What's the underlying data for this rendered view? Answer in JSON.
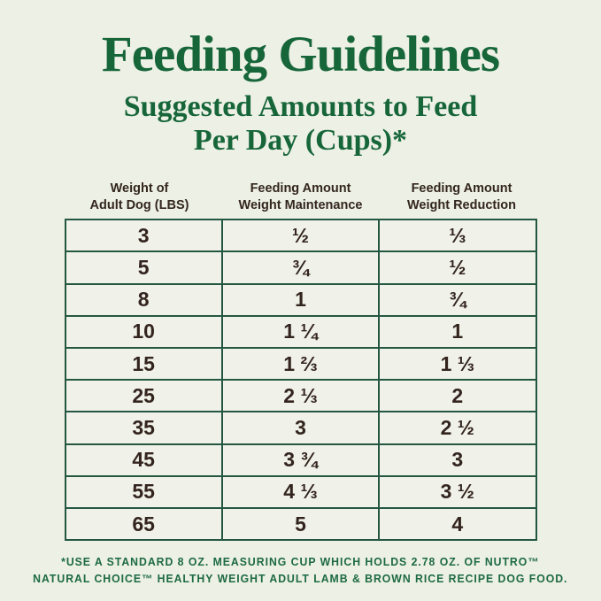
{
  "colors": {
    "background": "#EDF0E5",
    "heading_green": "#17663A",
    "table_border_green": "#245741",
    "cell_text_dark": "#33241E",
    "footnote_green": "#1C6A42"
  },
  "title": "Feeding Guidelines",
  "subtitle": {
    "line1": "Suggested Amounts to Feed",
    "line2": "Per Day (Cups)*"
  },
  "table": {
    "headers": [
      {
        "line1": "Weight of",
        "line2": "Adult Dog (LBS)"
      },
      {
        "line1": "Feeding Amount",
        "line2": "Weight Maintenance"
      },
      {
        "line1": "Feeding Amount",
        "line2": "Weight Reduction"
      }
    ],
    "rows": [
      [
        "3",
        "½",
        "⅓"
      ],
      [
        "5",
        "¾",
        "½"
      ],
      [
        "8",
        "1",
        "¾"
      ],
      [
        "10",
        "1 ¼",
        "1"
      ],
      [
        "15",
        "1 ⅔",
        "1 ⅓"
      ],
      [
        "25",
        "2 ⅓",
        "2"
      ],
      [
        "35",
        "3",
        "2 ½"
      ],
      [
        "45",
        "3 ¾",
        "3"
      ],
      [
        "55",
        "4 ⅓",
        "3 ½"
      ],
      [
        "65",
        "5",
        "4"
      ]
    ]
  },
  "footnote": {
    "line1": "*USE A STANDARD 8 OZ. MEASURING CUP WHICH HOLDS 2.78 OZ. OF NUTRO™",
    "line2": "NATURAL CHOICE™ HEALTHY WEIGHT ADULT LAMB & BROWN RICE RECIPE DOG FOOD."
  }
}
